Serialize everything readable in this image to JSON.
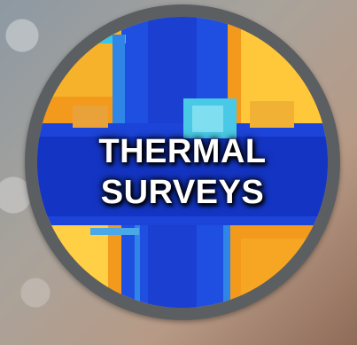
{
  "badge": {
    "line1": "THERMAL",
    "line2": "SURVEYS"
  },
  "colors": {
    "ring": "#5c5f62",
    "thermal_hot": "#f39a1c",
    "thermal_warm": "#ffd24a",
    "thermal_cold": "#1a3fd1",
    "thermal_mid": "#2f86e6",
    "text": "#ffffff"
  }
}
